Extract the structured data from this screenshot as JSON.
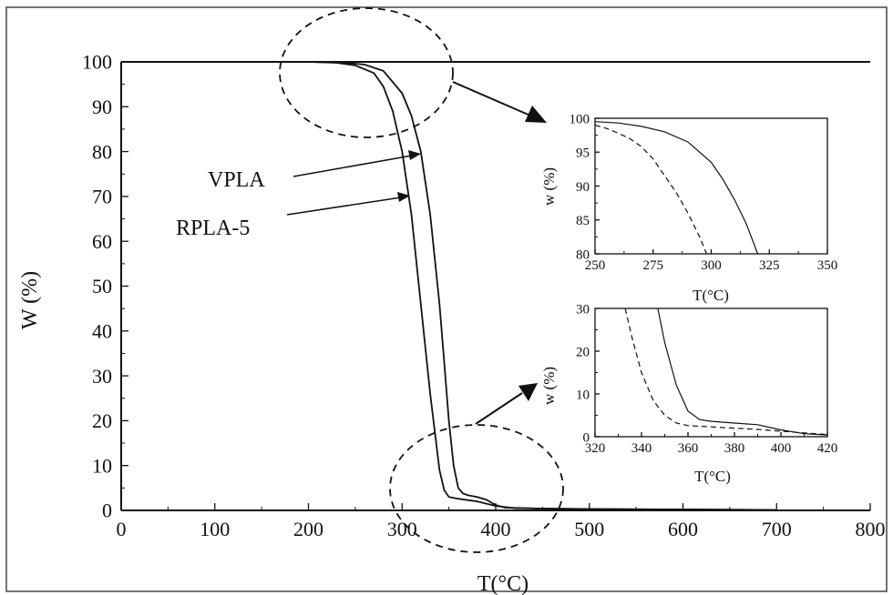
{
  "chart_data": [
    {
      "type": "line",
      "xlabel": "T(°C)",
      "ylabel": "W (%)",
      "xlim": [
        0,
        800
      ],
      "ylim": [
        0,
        100
      ],
      "xticks": [
        "0",
        "100",
        "200",
        "300",
        "400",
        "500",
        "600",
        "700",
        "800"
      ],
      "yticks": [
        "0",
        "10",
        "20",
        "30",
        "40",
        "50",
        "60",
        "70",
        "80",
        "90",
        "100"
      ],
      "grid": false,
      "series": [
        {
          "name": "VPLA",
          "style": "solid",
          "x": [
            30,
            200,
            240,
            260,
            280,
            300,
            310,
            320,
            330,
            340,
            345,
            350,
            355,
            360,
            365,
            370,
            380,
            390,
            400,
            410,
            450,
            500,
            600,
            700
          ],
          "y": [
            100,
            100,
            99.8,
            99.4,
            98,
            93,
            88,
            80,
            66,
            46,
            33,
            20,
            10,
            5,
            3.8,
            3.4,
            3,
            2.4,
            1.2,
            0.6,
            0.4,
            0.3,
            0.2,
            0.1
          ]
        },
        {
          "name": "RPLA-5",
          "style": "solid",
          "x": [
            30,
            200,
            230,
            250,
            270,
            280,
            290,
            300,
            310,
            320,
            330,
            340,
            345,
            350,
            360,
            370,
            380,
            400,
            420,
            450,
            500,
            600,
            700
          ],
          "y": [
            100,
            100,
            99.8,
            99.2,
            97.5,
            94.5,
            89,
            80,
            66,
            46,
            26,
            9,
            4.5,
            3,
            2.6,
            2.3,
            2,
            1,
            0.5,
            0.4,
            0.3,
            0.2,
            0.1
          ]
        }
      ]
    },
    {
      "type": "line",
      "xlabel": "T(°C)",
      "ylabel": "w (%)",
      "xlim": [
        250,
        350
      ],
      "ylim": [
        80,
        100
      ],
      "xticks": [
        "250",
        "275",
        "300",
        "325",
        "350"
      ],
      "yticks": [
        "80",
        "85",
        "90",
        "95",
        "100"
      ],
      "series": [
        {
          "style": "solid",
          "x": [
            250,
            260,
            270,
            280,
            290,
            300,
            305,
            310,
            315,
            320
          ],
          "y": [
            99.5,
            99.3,
            98.8,
            98,
            96.5,
            93.5,
            91,
            88,
            84.5,
            80
          ]
        },
        {
          "style": "dashed",
          "x": [
            250,
            255,
            260,
            265,
            270,
            275,
            280,
            285,
            290,
            295,
            298
          ],
          "y": [
            99,
            98.5,
            97.8,
            97,
            95.8,
            94,
            91.5,
            89,
            86,
            82.5,
            80
          ]
        }
      ]
    },
    {
      "type": "line",
      "xlabel": "T(°C)",
      "ylabel": "w (%)",
      "xlim": [
        320,
        420
      ],
      "ylim": [
        0,
        30
      ],
      "xticks": [
        "320",
        "340",
        "360",
        "380",
        "400",
        "420"
      ],
      "yticks": [
        "0",
        "10",
        "20",
        "30"
      ],
      "series": [
        {
          "style": "solid",
          "x": [
            347,
            350,
            355,
            360,
            365,
            370,
            380,
            390,
            400,
            410,
            420
          ],
          "y": [
            30,
            22,
            12,
            6,
            4,
            3.6,
            3.2,
            2.8,
            1.6,
            0.7,
            0.4
          ]
        },
        {
          "style": "dashed",
          "x": [
            333,
            336,
            340,
            345,
            350,
            355,
            360,
            370,
            380,
            390,
            400,
            410,
            420
          ],
          "y": [
            30,
            23,
            15,
            8.5,
            5,
            3.2,
            2.6,
            2.3,
            2,
            1.7,
            1.3,
            0.9,
            0.5
          ]
        }
      ]
    }
  ]
}
